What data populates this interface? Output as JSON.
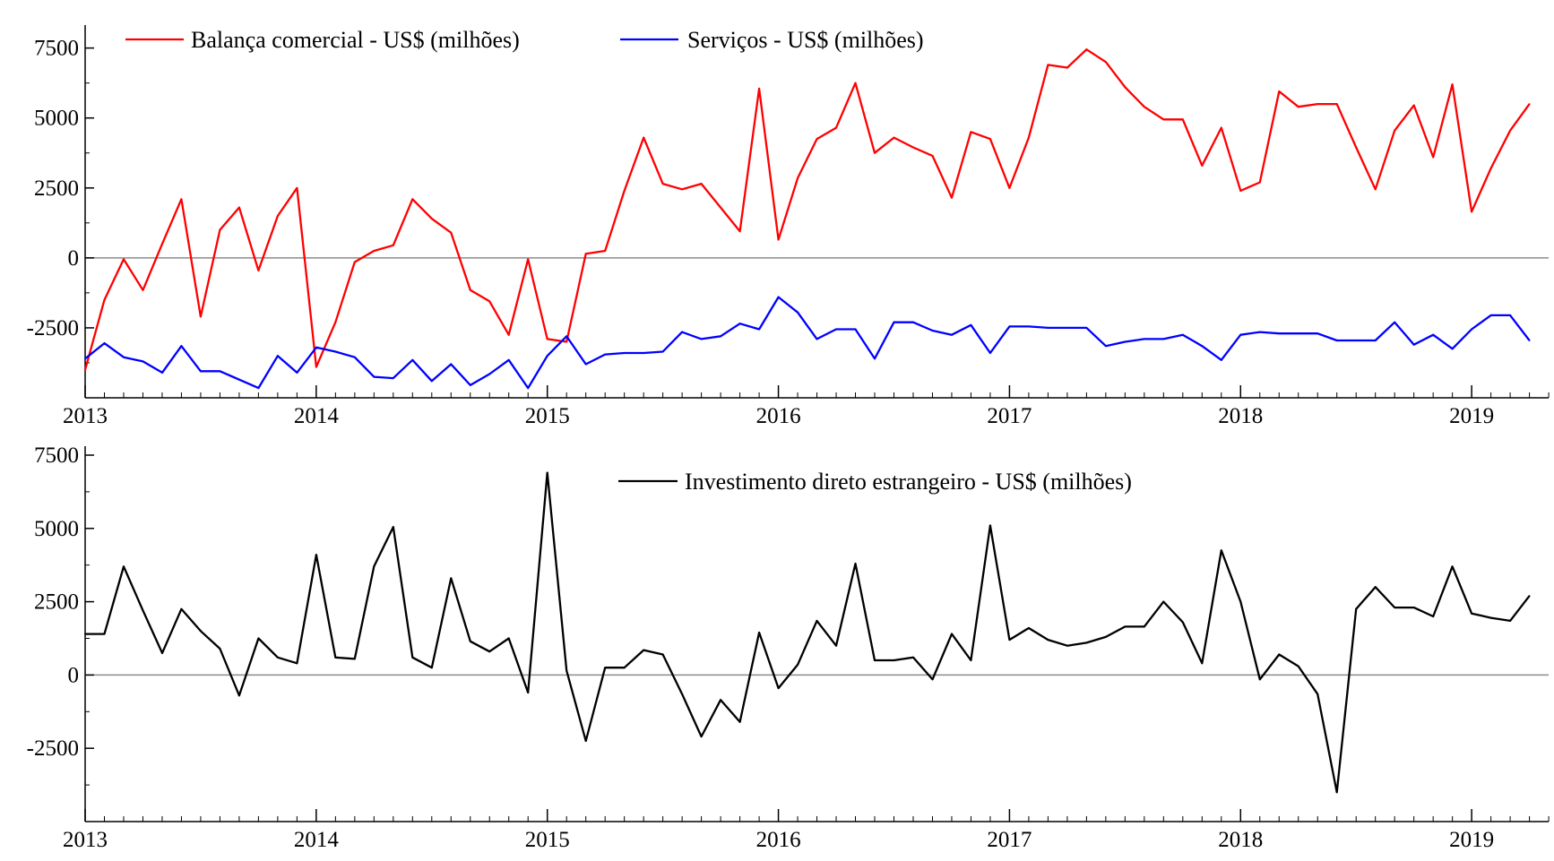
{
  "chart_data": [
    {
      "type": "line",
      "x_axis": {
        "tick_labels": [
          "2013",
          "2014",
          "2015",
          "2016",
          "2017",
          "2018",
          "2019"
        ],
        "range": [
          2013.0,
          2019.333
        ]
      },
      "y_axis": {
        "tick_labels": [
          "7500",
          "5000",
          "2500",
          "0",
          "-2500"
        ],
        "tick_values": [
          7500,
          5000,
          2500,
          0,
          -2500
        ],
        "range": [
          -5000,
          8000
        ]
      },
      "grid": false,
      "zero_line": true,
      "legend_position": "top",
      "x_start_year": 2013,
      "x_step_months": 1,
      "series": [
        {
          "name": "Balança comercial - US$ (milhões)",
          "color": "#ff0000",
          "values": [
            -4000,
            -1500,
            -50,
            -1150,
            500,
            2100,
            -2100,
            1000,
            1800,
            -450,
            1500,
            2500,
            -3900,
            -2300,
            -150,
            250,
            450,
            2100,
            1400,
            900,
            -1150,
            -1550,
            -2750,
            -50,
            -2900,
            -3000,
            150,
            250,
            2400,
            4300,
            2650,
            2450,
            2650,
            1800,
            950,
            6050,
            650,
            2850,
            4250,
            4650,
            6250,
            3750,
            4300,
            3950,
            3650,
            2150,
            4500,
            4250,
            2500,
            4300,
            6900,
            6800,
            7450,
            7000,
            6100,
            5400,
            4950,
            4950,
            3300,
            4650,
            2400,
            2700,
            5950,
            5400,
            5500,
            5500,
            3950,
            2450,
            4550,
            5450,
            3600,
            6200,
            1650,
            3200,
            4550,
            5500
          ]
        },
        {
          "name": "Serviços - US$ (milhões)",
          "color": "#0000ff",
          "values": [
            -3600,
            -3050,
            -3550,
            -3700,
            -4100,
            -3150,
            -4050,
            -4050,
            -4350,
            -4650,
            -3500,
            -4100,
            -3200,
            -3350,
            -3550,
            -4250,
            -4300,
            -3650,
            -4400,
            -3800,
            -4550,
            -4150,
            -3650,
            -4650,
            -3500,
            -2800,
            -3800,
            -3450,
            -3400,
            -3400,
            -3350,
            -2650,
            -2900,
            -2800,
            -2350,
            -2550,
            -1400,
            -1950,
            -2900,
            -2550,
            -2550,
            -3600,
            -2300,
            -2300,
            -2600,
            -2750,
            -2400,
            -3400,
            -2450,
            -2450,
            -2500,
            -2500,
            -2500,
            -3150,
            -3000,
            -2900,
            -2900,
            -2750,
            -3150,
            -3650,
            -2750,
            -2650,
            -2700,
            -2700,
            -2700,
            -2950,
            -2950,
            -2950,
            -2300,
            -3100,
            -2750,
            -3250,
            -2550,
            -2050,
            -2050,
            -2950
          ]
        }
      ]
    },
    {
      "type": "line",
      "x_axis": {
        "tick_labels": [
          "2013",
          "2014",
          "2015",
          "2016",
          "2017",
          "2018",
          "2019"
        ],
        "range": [
          2013.0,
          2019.333
        ]
      },
      "y_axis": {
        "tick_labels": [
          "7500",
          "5000",
          "2500",
          "0",
          "-2500"
        ],
        "tick_values": [
          7500,
          5000,
          2500,
          0,
          -2500
        ],
        "range": [
          -5000,
          7500
        ]
      },
      "grid": false,
      "zero_line": true,
      "legend_position": "top-right",
      "x_start_year": 2013,
      "x_step_months": 1,
      "series": [
        {
          "name": "Investimento direto estrangeiro - US$ (milhões)",
          "color": "#000000",
          "values": [
            1400,
            1400,
            3700,
            2200,
            750,
            2250,
            1500,
            900,
            -700,
            1250,
            600,
            400,
            4100,
            600,
            550,
            3700,
            5050,
            600,
            250,
            3300,
            1150,
            800,
            1250,
            -600,
            6900,
            150,
            -2250,
            250,
            250,
            850,
            700,
            -650,
            -2100,
            -850,
            -1600,
            1450,
            -450,
            350,
            1850,
            1000,
            3800,
            500,
            500,
            600,
            -150,
            1400,
            500,
            5100,
            1200,
            1600,
            1200,
            1000,
            1100,
            1300,
            1650,
            1650,
            2500,
            1800,
            400,
            4250,
            2500,
            -150,
            700,
            300,
            -650,
            -4000,
            2250,
            3000,
            2300,
            2300,
            2000,
            3700,
            2100,
            1950,
            1850,
            2700
          ]
        }
      ]
    }
  ]
}
